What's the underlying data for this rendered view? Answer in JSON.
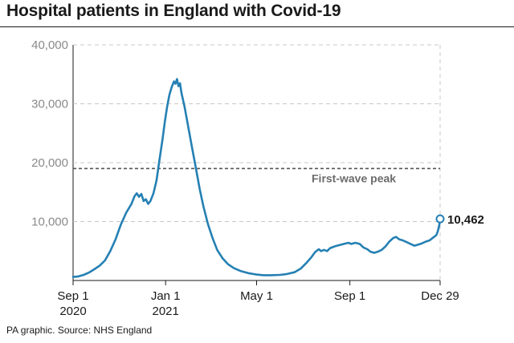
{
  "title": "Hospital patients in England with Covid-19",
  "source": "PA graphic. Source: NHS England",
  "colors": {
    "line": "#2580b3",
    "reference": "#555555",
    "grid": "#c8c8c8"
  },
  "chart_data": {
    "type": "line",
    "title": "Hospital patients in England with Covid-19",
    "xlabel": "",
    "ylabel": "",
    "ylim": [
      0,
      40000
    ],
    "xlim": [
      "2020-09-01",
      "2021-12-29"
    ],
    "grid": true,
    "yticks": [
      {
        "value": 10000,
        "label": "10,000"
      },
      {
        "value": 20000,
        "label": "20,000"
      },
      {
        "value": 30000,
        "label": "30,000"
      },
      {
        "value": 40000,
        "label": "40,000"
      }
    ],
    "xticks": [
      {
        "date": "2020-09-01",
        "line1": "Sep 1",
        "line2": "2020"
      },
      {
        "date": "2021-01-01",
        "line1": "Jan 1",
        "line2": "2021"
      },
      {
        "date": "2021-05-01",
        "line1": "May 1",
        "line2": ""
      },
      {
        "date": "2021-09-01",
        "line1": "Sep 1",
        "line2": ""
      },
      {
        "date": "2021-12-29",
        "line1": "Dec 29",
        "line2": ""
      }
    ],
    "reference_line": {
      "value": 19000,
      "label": "First-wave peak"
    },
    "end_label": "10,462",
    "series": [
      {
        "points": [
          [
            "2020-09-01",
            600
          ],
          [
            "2020-09-08",
            700
          ],
          [
            "2020-09-15",
            950
          ],
          [
            "2020-09-22",
            1350
          ],
          [
            "2020-09-29",
            1900
          ],
          [
            "2020-10-06",
            2500
          ],
          [
            "2020-10-13",
            3400
          ],
          [
            "2020-10-20",
            5000
          ],
          [
            "2020-10-27",
            7000
          ],
          [
            "2020-11-03",
            9500
          ],
          [
            "2020-11-10",
            11500
          ],
          [
            "2020-11-17",
            13000
          ],
          [
            "2020-11-21",
            14300
          ],
          [
            "2020-11-24",
            14800
          ],
          [
            "2020-11-27",
            14200
          ],
          [
            "2020-11-30",
            14700
          ],
          [
            "2020-12-03",
            13500
          ],
          [
            "2020-12-06",
            13800
          ],
          [
            "2020-12-09",
            13000
          ],
          [
            "2020-12-12",
            13500
          ],
          [
            "2020-12-16",
            14800
          ],
          [
            "2020-12-20",
            17000
          ],
          [
            "2020-12-24",
            20500
          ],
          [
            "2020-12-28",
            24000
          ],
          [
            "2020-12-31",
            27000
          ],
          [
            "2021-01-03",
            29500
          ],
          [
            "2021-01-06",
            31500
          ],
          [
            "2021-01-09",
            32800
          ],
          [
            "2021-01-12",
            33800
          ],
          [
            "2021-01-14",
            33400
          ],
          [
            "2021-01-16",
            34200
          ],
          [
            "2021-01-18",
            33000
          ],
          [
            "2021-01-20",
            33500
          ],
          [
            "2021-01-22",
            31800
          ],
          [
            "2021-01-26",
            29500
          ],
          [
            "2021-01-31",
            26000
          ],
          [
            "2021-02-05",
            22500
          ],
          [
            "2021-02-10",
            19000
          ],
          [
            "2021-02-15",
            15500
          ],
          [
            "2021-02-20",
            12500
          ],
          [
            "2021-02-26",
            9500
          ],
          [
            "2021-03-04",
            7200
          ],
          [
            "2021-03-10",
            5200
          ],
          [
            "2021-03-17",
            3800
          ],
          [
            "2021-03-24",
            2800
          ],
          [
            "2021-04-01",
            2100
          ],
          [
            "2021-04-10",
            1600
          ],
          [
            "2021-04-20",
            1250
          ],
          [
            "2021-05-01",
            1000
          ],
          [
            "2021-05-10",
            900
          ],
          [
            "2021-05-20",
            900
          ],
          [
            "2021-06-01",
            950
          ],
          [
            "2021-06-10",
            1100
          ],
          [
            "2021-06-20",
            1400
          ],
          [
            "2021-06-28",
            2000
          ],
          [
            "2021-07-05",
            2900
          ],
          [
            "2021-07-12",
            3900
          ],
          [
            "2021-07-17",
            4800
          ],
          [
            "2021-07-22",
            5300
          ],
          [
            "2021-07-25",
            5000
          ],
          [
            "2021-07-29",
            5200
          ],
          [
            "2021-08-02",
            5000
          ],
          [
            "2021-08-06",
            5500
          ],
          [
            "2021-08-12",
            5800
          ],
          [
            "2021-08-18",
            6000
          ],
          [
            "2021-08-24",
            6200
          ],
          [
            "2021-08-30",
            6400
          ],
          [
            "2021-09-03",
            6200
          ],
          [
            "2021-09-08",
            6400
          ],
          [
            "2021-09-14",
            6200
          ],
          [
            "2021-09-19",
            5600
          ],
          [
            "2021-09-24",
            5300
          ],
          [
            "2021-09-28",
            4900
          ],
          [
            "2021-10-03",
            4700
          ],
          [
            "2021-10-08",
            4900
          ],
          [
            "2021-10-13",
            5200
          ],
          [
            "2021-10-18",
            5800
          ],
          [
            "2021-10-23",
            6600
          ],
          [
            "2021-10-28",
            7200
          ],
          [
            "2021-11-01",
            7400
          ],
          [
            "2021-11-05",
            7000
          ],
          [
            "2021-11-10",
            6800
          ],
          [
            "2021-11-15",
            6500
          ],
          [
            "2021-11-20",
            6200
          ],
          [
            "2021-11-25",
            5900
          ],
          [
            "2021-11-30",
            6100
          ],
          [
            "2021-12-05",
            6300
          ],
          [
            "2021-12-10",
            6600
          ],
          [
            "2021-12-15",
            6800
          ],
          [
            "2021-12-20",
            7300
          ],
          [
            "2021-12-24",
            7700
          ],
          [
            "2021-12-26",
            8400
          ],
          [
            "2021-12-28",
            9500
          ],
          [
            "2021-12-29",
            10462
          ]
        ]
      }
    ]
  }
}
